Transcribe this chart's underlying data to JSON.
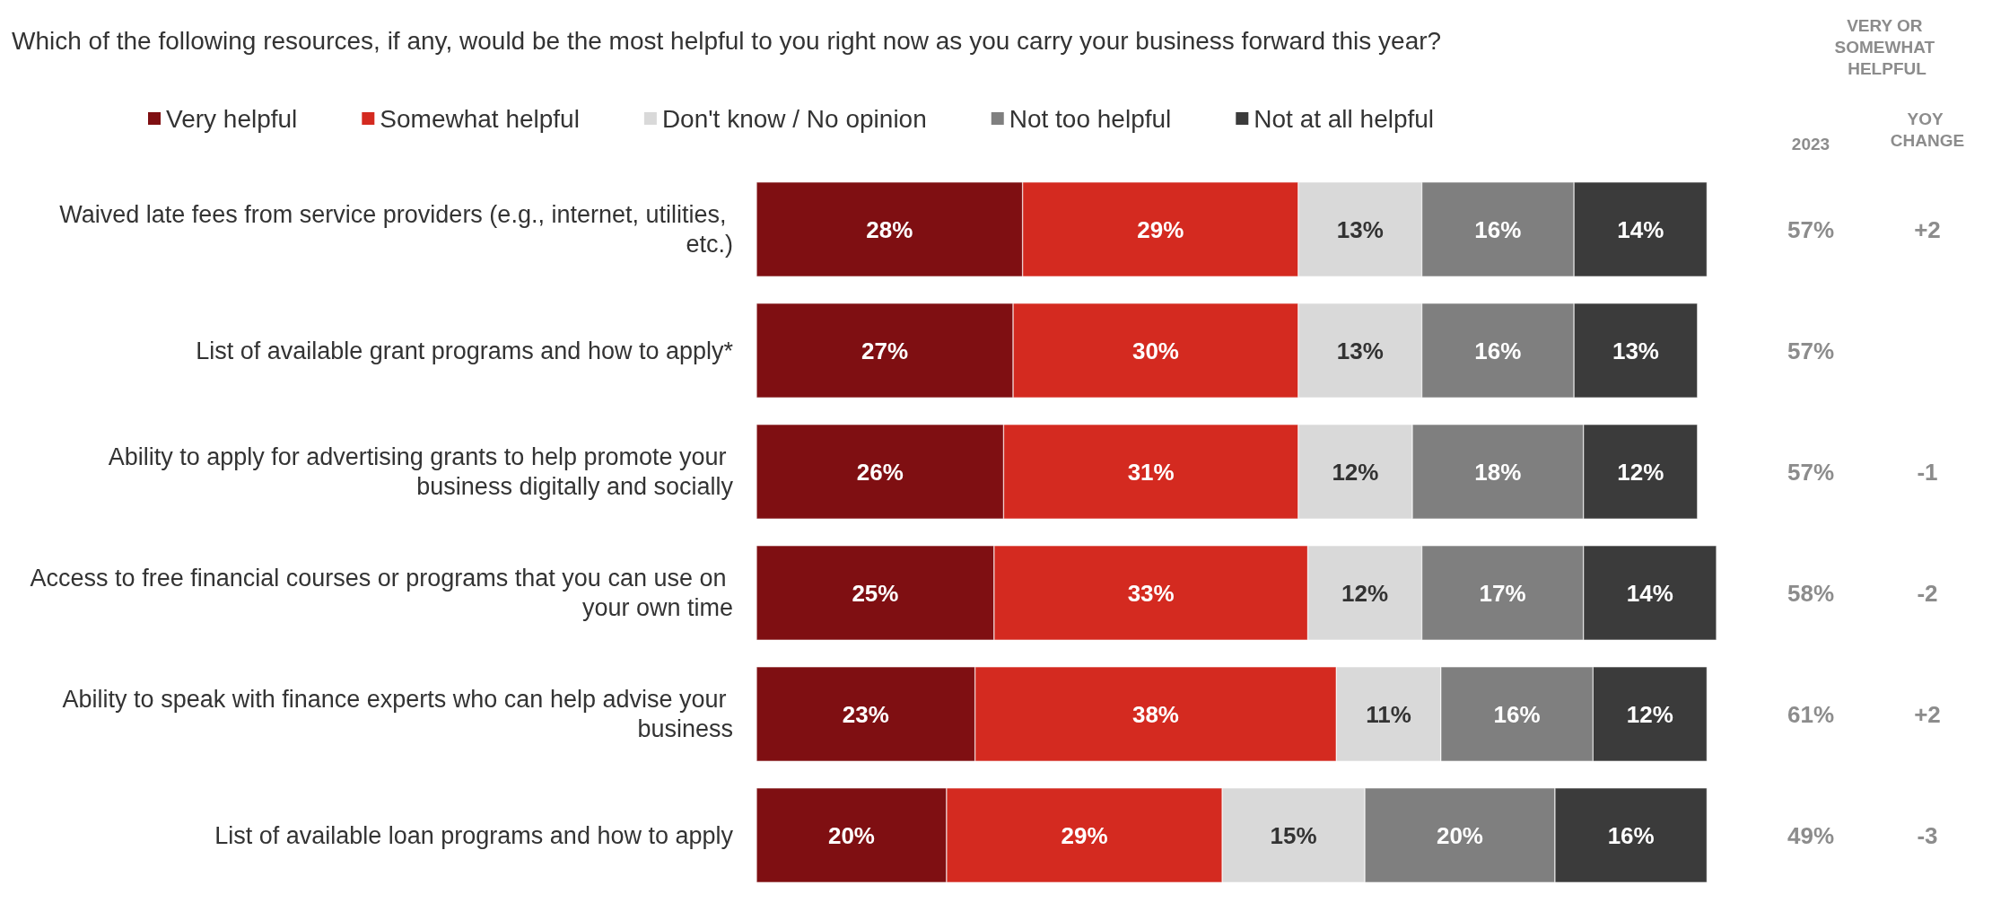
{
  "chart_data": {
    "type": "bar",
    "orientation": "horizontal",
    "stacked": true,
    "title": "Which of the following resources, if any, would be the most helpful to you right now as you carry your business forward this year?",
    "categories": [
      "Waived late fees from service providers (e.g., internet, utilities, etc.)",
      "List of available grant programs and how to apply*",
      "Ability to apply for advertising grants to help promote your business digitally and socially",
      "Access to free financial courses or programs that you can use on your own time",
      "Ability to speak with finance experts who can help advise your business",
      "List of available loan programs and how to apply"
    ],
    "series": [
      {
        "name": "Very helpful",
        "color": "#7f0f12",
        "values": [
          28,
          27,
          26,
          25,
          23,
          20
        ],
        "value_labels": [
          "28%",
          "27%",
          "26%",
          "25%",
          "23%",
          "20%"
        ]
      },
      {
        "name": "Somewhat helpful",
        "color": "#d42a20",
        "values": [
          29,
          30,
          31,
          33,
          38,
          29
        ],
        "value_labels": [
          "29%",
          "30%",
          "31%",
          "33%",
          "38%",
          "29%"
        ]
      },
      {
        "name": "Don't know / No opinion",
        "color": "#d9d9d9",
        "values": [
          13,
          13,
          12,
          12,
          11,
          15
        ],
        "value_labels": [
          "13%",
          "13%",
          "12%",
          "12%",
          "11%",
          "15%"
        ]
      },
      {
        "name": "Not too helpful",
        "color": "#7f7f7f",
        "values": [
          16,
          16,
          18,
          17,
          16,
          20
        ],
        "value_labels": [
          "16%",
          "16%",
          "18%",
          "17%",
          "16%",
          "20%"
        ]
      },
      {
        "name": "Not at all helpful",
        "color": "#3b3b3b",
        "values": [
          14,
          13,
          12,
          14,
          12,
          16
        ],
        "value_labels": [
          "14%",
          "13%",
          "12%",
          "14%",
          "12%",
          "16%"
        ]
      }
    ],
    "legend": "top",
    "grid": false,
    "tick_labels": "y",
    "annotations": [
      "VERY OR SOMEWHAT HELPFUL",
      "2023",
      "YOY CHANGE",
      "57%",
      "57%",
      "57%",
      "58%",
      "61%",
      "49%",
      "+2",
      "-1",
      "-2",
      "+2",
      "-3"
    ]
  }
}
